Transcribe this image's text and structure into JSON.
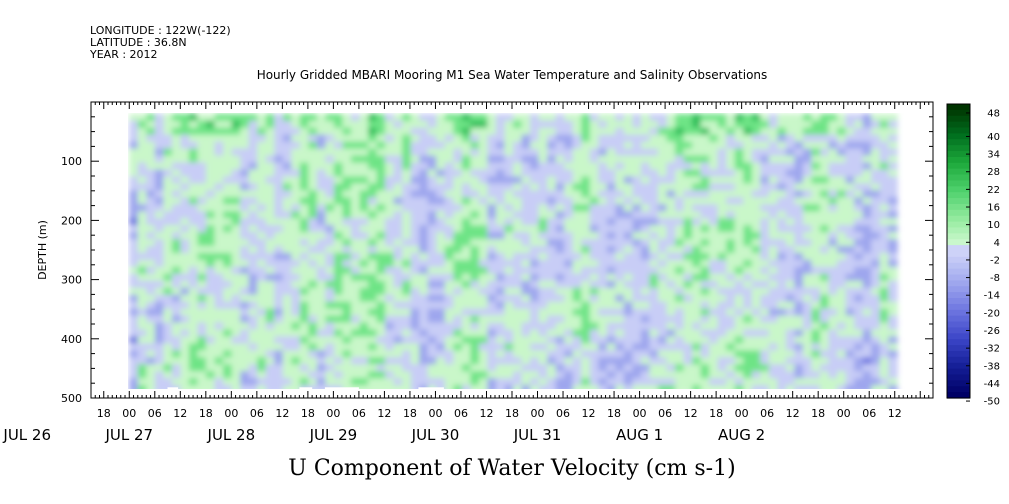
{
  "header": {
    "longitude": "LONGITUDE : 122W(-122)",
    "latitude": "LATITUDE : 36.8N",
    "year": "YEAR : 2012",
    "title": "Hourly Gridded MBARI Mooring M1 Sea Water Temperature and Salinity Observations"
  },
  "chart_data": {
    "type": "heatmap",
    "title": "Hourly Gridded MBARI Mooring M1 Sea Water Temperature and Salinity Observations",
    "variable_label": "U Component of Water Velocity (cm s-1)",
    "ylabel": "DEPTH (m)",
    "y_axis_inverted": true,
    "ylim": [
      500,
      0
    ],
    "y_ticks": [
      100,
      200,
      300,
      400,
      500
    ],
    "y_tick_labels": [
      "100",
      "200",
      "300",
      "400",
      "500"
    ],
    "x_range_hours": [
      -9,
      189
    ],
    "x_hour_labels": [
      "18",
      "00",
      "06",
      "12",
      "18",
      "00",
      "06",
      "12",
      "18",
      "00",
      "06",
      "12",
      "18",
      "00",
      "06",
      "12",
      "18",
      "00",
      "06",
      "12",
      "18",
      "00",
      "06",
      "12",
      "18",
      "00",
      "06",
      "12",
      "18",
      "00",
      "06",
      "12"
    ],
    "x_date_labels": [
      "JUL 26",
      "JUL 27",
      "JUL 28",
      "JUL 29",
      "JUL 30",
      "JUL 31",
      "AUG  1",
      "AUG  2"
    ],
    "data_extent_hours": [
      0,
      180
    ],
    "data_extent_depth": [
      20,
      490
    ],
    "colorbar": {
      "ticks": [
        "48",
        "40",
        "34",
        "28",
        "22",
        "16",
        "10",
        "4",
        "-2",
        "-8",
        "-14",
        "-20",
        "-26",
        "-32",
        "-38",
        "-44",
        "-50"
      ],
      "levels": [
        48,
        46,
        44,
        42,
        40,
        38,
        36,
        34,
        32,
        30,
        28,
        26,
        24,
        22,
        20,
        18,
        16,
        14,
        12,
        10,
        8,
        6,
        4,
        2,
        0,
        -2,
        -4,
        -6,
        -8,
        -10,
        -12,
        -14,
        -16,
        -18,
        -20,
        -22,
        -24,
        -26,
        -28,
        -30,
        -32,
        -34,
        -36,
        -38,
        -40,
        -42,
        -44,
        -46,
        -48,
        -50
      ]
    },
    "description_note": "",
    "colors": {
      "green_light": "#c9f7c9",
      "green_mid": "#6ee486",
      "green_dark": "#2fbf5a",
      "blue_light": "#c8cdf6",
      "blue_mid": "#9ea6ee",
      "blue_dark": "#6f77e0",
      "colorbar_top": "#003300",
      "colorbar_bottom": "#000066"
    }
  }
}
